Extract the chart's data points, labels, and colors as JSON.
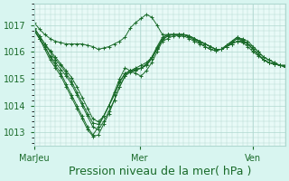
{
  "background_color": "#d8f5f0",
  "plot_bg_color": "#e8faf7",
  "grid_color": "#b0d8d0",
  "line_color": "#1a6b2a",
  "marker_color": "#1a6b2a",
  "xlabel": "Pression niveau de la mer( hPa )",
  "xlabel_fontsize": 9,
  "tick_fontsize": 7,
  "xtick_labels": [
    "MarJeu",
    "Mer",
    "Ven"
  ],
  "xtick_positions": [
    0.0,
    0.42,
    0.87
  ],
  "ylim": [
    1012.5,
    1017.8
  ],
  "ytick_positions": [
    1013,
    1014,
    1015,
    1016,
    1017
  ],
  "series": [
    [
      1016.8,
      1016.5,
      1016.2,
      1015.8,
      1015.5,
      1015.2,
      1014.8,
      1014.4,
      1014.0,
      1013.6,
      1013.2,
      1012.9,
      1013.2,
      1013.6,
      1014.0,
      1014.5,
      1015.0,
      1015.4,
      1015.3,
      1015.2,
      1015.1,
      1015.3,
      1015.6,
      1016.0,
      1016.4,
      1016.5,
      1016.6,
      1016.65,
      1016.65,
      1016.6,
      1016.5,
      1016.4,
      1016.3,
      1016.2,
      1016.1,
      1016.1,
      1016.2,
      1016.3,
      1016.4,
      1016.4,
      1016.3,
      1016.2,
      1016.0,
      1015.8,
      1015.7,
      1015.6,
      1015.5,
      1015.5
    ],
    [
      1016.8,
      1016.5,
      1016.1,
      1015.7,
      1015.4,
      1015.1,
      1014.7,
      1014.3,
      1013.9,
      1013.5,
      1013.1,
      1012.85,
      1012.9,
      1013.3,
      1013.7,
      1014.2,
      1014.7,
      1015.1,
      1015.3,
      1015.4,
      1015.5,
      1015.6,
      1015.8,
      1016.2,
      1016.55,
      1016.65,
      1016.65,
      1016.65,
      1016.65,
      1016.6,
      1016.5,
      1016.4,
      1016.3,
      1016.2,
      1016.1,
      1016.1,
      1016.2,
      1016.35,
      1016.5,
      1016.5,
      1016.4,
      1016.2,
      1016.0,
      1015.8,
      1015.7,
      1015.6,
      1015.5,
      1015.5
    ],
    [
      1016.9,
      1016.6,
      1016.3,
      1016.0,
      1015.7,
      1015.5,
      1015.2,
      1014.9,
      1014.5,
      1014.1,
      1013.7,
      1013.35,
      1013.3,
      1013.6,
      1014.0,
      1014.4,
      1014.9,
      1015.2,
      1015.3,
      1015.35,
      1015.4,
      1015.55,
      1015.8,
      1016.15,
      1016.5,
      1016.65,
      1016.65,
      1016.6,
      1016.6,
      1016.5,
      1016.4,
      1016.3,
      1016.2,
      1016.1,
      1016.05,
      1016.1,
      1016.2,
      1016.35,
      1016.5,
      1016.4,
      1016.3,
      1016.1,
      1015.9,
      1015.7,
      1015.6,
      1015.55,
      1015.5,
      1015.5
    ],
    [
      1016.85,
      1016.5,
      1016.2,
      1015.85,
      1015.6,
      1015.35,
      1015.1,
      1014.8,
      1014.4,
      1014.0,
      1013.6,
      1013.2,
      1013.1,
      1013.4,
      1013.8,
      1014.2,
      1014.7,
      1015.1,
      1015.25,
      1015.3,
      1015.4,
      1015.5,
      1015.75,
      1016.1,
      1016.45,
      1016.6,
      1016.65,
      1016.65,
      1016.65,
      1016.55,
      1016.45,
      1016.35,
      1016.2,
      1016.1,
      1016.05,
      1016.1,
      1016.25,
      1016.4,
      1016.55,
      1016.45,
      1016.3,
      1016.1,
      1015.9,
      1015.7,
      1015.6,
      1015.55,
      1015.5,
      1015.45
    ],
    [
      1016.9,
      1016.6,
      1016.3,
      1016.05,
      1015.8,
      1015.55,
      1015.3,
      1015.05,
      1014.7,
      1014.3,
      1013.9,
      1013.5,
      1013.4,
      1013.6,
      1014.0,
      1014.4,
      1014.85,
      1015.2,
      1015.3,
      1015.35,
      1015.4,
      1015.5,
      1015.75,
      1016.1,
      1016.45,
      1016.6,
      1016.65,
      1016.65,
      1016.65,
      1016.6,
      1016.5,
      1016.4,
      1016.3,
      1016.2,
      1016.1,
      1016.1,
      1016.25,
      1016.4,
      1016.55,
      1016.45,
      1016.3,
      1016.1,
      1015.9,
      1015.7,
      1015.6,
      1015.55,
      1015.5,
      1015.45
    ],
    [
      1017.1,
      1016.85,
      1016.65,
      1016.5,
      1016.4,
      1016.35,
      1016.3,
      1016.3,
      1016.3,
      1016.3,
      1016.25,
      1016.2,
      1016.1,
      1016.15,
      1016.2,
      1016.3,
      1016.4,
      1016.55,
      1016.9,
      1017.1,
      1017.25,
      1017.4,
      1017.3,
      1017.0,
      1016.65,
      1016.65,
      1016.65,
      1016.65,
      1016.65,
      1016.6,
      1016.5,
      1016.4,
      1016.3,
      1016.2,
      1016.1,
      1016.1,
      1016.2,
      1016.3,
      1016.4,
      1016.35,
      1016.2,
      1016.0,
      1015.85,
      1015.7,
      1015.6,
      1015.55,
      1015.5,
      1015.45
    ]
  ]
}
